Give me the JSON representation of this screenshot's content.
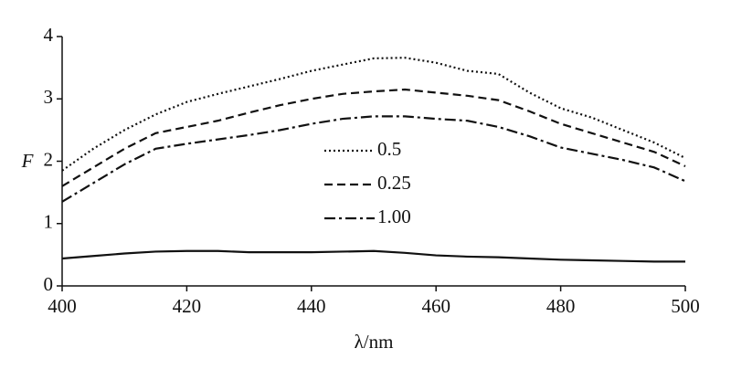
{
  "chart_data": {
    "type": "line",
    "x_label": "λ/nm",
    "y_label": "F",
    "x": [
      400,
      405,
      410,
      415,
      420,
      425,
      430,
      435,
      440,
      445,
      450,
      455,
      460,
      465,
      470,
      475,
      480,
      485,
      490,
      495,
      500
    ],
    "series": [
      {
        "name": "0.5",
        "color": "#111111",
        "style": "dotted",
        "values": [
          1.85,
          2.2,
          2.5,
          2.75,
          2.95,
          3.08,
          3.2,
          3.32,
          3.45,
          3.55,
          3.65,
          3.66,
          3.58,
          3.45,
          3.4,
          3.1,
          2.85,
          2.7,
          2.5,
          2.3,
          2.05
        ]
      },
      {
        "name": "0.25",
        "color": "#111111",
        "style": "dashed",
        "values": [
          1.6,
          1.9,
          2.2,
          2.45,
          2.55,
          2.65,
          2.78,
          2.9,
          3.0,
          3.08,
          3.12,
          3.15,
          3.1,
          3.05,
          2.98,
          2.8,
          2.6,
          2.45,
          2.3,
          2.15,
          1.92
        ]
      },
      {
        "name": "1.00",
        "color": "#111111",
        "style": "dashdot",
        "values": [
          1.35,
          1.65,
          1.95,
          2.2,
          2.28,
          2.35,
          2.42,
          2.5,
          2.6,
          2.68,
          2.72,
          2.72,
          2.68,
          2.65,
          2.55,
          2.4,
          2.22,
          2.12,
          2.02,
          1.9,
          1.68
        ]
      },
      {
        "color": "#111111",
        "style": "solid",
        "values": [
          0.44,
          0.48,
          0.52,
          0.55,
          0.56,
          0.56,
          0.54,
          0.54,
          0.54,
          0.55,
          0.56,
          0.53,
          0.49,
          0.47,
          0.46,
          0.44,
          0.42,
          0.41,
          0.4,
          0.39,
          0.39
        ]
      }
    ],
    "xlim": [
      400,
      500
    ],
    "xticks": [
      400,
      420,
      440,
      460,
      480,
      500
    ],
    "ylim": [
      0,
      4
    ],
    "yticks": [
      0,
      1,
      2,
      3,
      4
    ]
  }
}
